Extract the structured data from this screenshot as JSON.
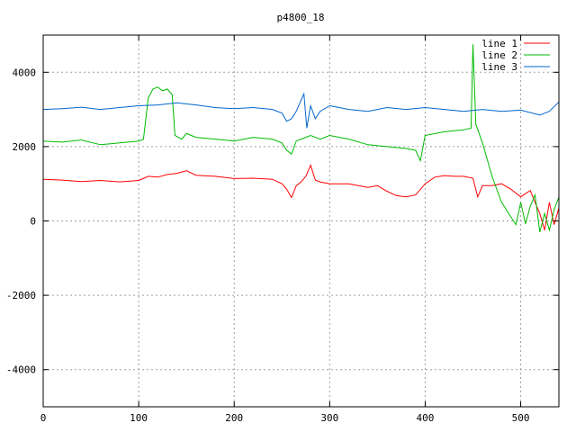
{
  "chart_data": {
    "type": "line",
    "title": "p4800_18",
    "xlabel": "",
    "ylabel": "",
    "xlim": [
      0,
      540
    ],
    "ylim": [
      -5000,
      5000
    ],
    "xticks": [
      0,
      100,
      200,
      300,
      400,
      500
    ],
    "yticks": [
      -4000,
      -2000,
      0,
      2000,
      4000
    ],
    "grid": true,
    "legend_position": "top-right",
    "series": [
      {
        "name": "line 1",
        "color": "#ff0000",
        "points": [
          [
            0,
            1120
          ],
          [
            20,
            1100
          ],
          [
            40,
            1060
          ],
          [
            60,
            1090
          ],
          [
            80,
            1050
          ],
          [
            100,
            1090
          ],
          [
            110,
            1200
          ],
          [
            120,
            1180
          ],
          [
            130,
            1250
          ],
          [
            140,
            1280
          ],
          [
            150,
            1350
          ],
          [
            160,
            1230
          ],
          [
            180,
            1200
          ],
          [
            200,
            1140
          ],
          [
            220,
            1150
          ],
          [
            240,
            1120
          ],
          [
            250,
            1000
          ],
          [
            255,
            850
          ],
          [
            260,
            630
          ],
          [
            265,
            950
          ],
          [
            270,
            1050
          ],
          [
            275,
            1200
          ],
          [
            280,
            1500
          ],
          [
            285,
            1100
          ],
          [
            290,
            1050
          ],
          [
            300,
            1000
          ],
          [
            320,
            1000
          ],
          [
            340,
            900
          ],
          [
            350,
            950
          ],
          [
            360,
            800
          ],
          [
            370,
            680
          ],
          [
            380,
            650
          ],
          [
            390,
            700
          ],
          [
            400,
            1000
          ],
          [
            410,
            1180
          ],
          [
            420,
            1220
          ],
          [
            430,
            1200
          ],
          [
            440,
            1200
          ],
          [
            450,
            1150
          ],
          [
            455,
            650
          ],
          [
            460,
            950
          ],
          [
            470,
            950
          ],
          [
            480,
            1000
          ],
          [
            490,
            850
          ],
          [
            500,
            650
          ],
          [
            510,
            820
          ],
          [
            515,
            500
          ],
          [
            520,
            200
          ],
          [
            525,
            -250
          ],
          [
            530,
            500
          ],
          [
            535,
            -100
          ],
          [
            540,
            350
          ]
        ]
      },
      {
        "name": "line 2",
        "color": "#00bb00",
        "points": [
          [
            0,
            2150
          ],
          [
            20,
            2120
          ],
          [
            40,
            2180
          ],
          [
            60,
            2050
          ],
          [
            80,
            2100
          ],
          [
            100,
            2150
          ],
          [
            105,
            2200
          ],
          [
            110,
            3300
          ],
          [
            115,
            3550
          ],
          [
            120,
            3600
          ],
          [
            125,
            3500
          ],
          [
            130,
            3550
          ],
          [
            135,
            3400
          ],
          [
            138,
            2300
          ],
          [
            145,
            2200
          ],
          [
            150,
            2350
          ],
          [
            160,
            2250
          ],
          [
            180,
            2200
          ],
          [
            200,
            2150
          ],
          [
            220,
            2250
          ],
          [
            240,
            2200
          ],
          [
            250,
            2100
          ],
          [
            255,
            1900
          ],
          [
            260,
            1800
          ],
          [
            265,
            2150
          ],
          [
            270,
            2200
          ],
          [
            275,
            2250
          ],
          [
            280,
            2300
          ],
          [
            290,
            2200
          ],
          [
            300,
            2300
          ],
          [
            320,
            2200
          ],
          [
            340,
            2050
          ],
          [
            360,
            2000
          ],
          [
            380,
            1950
          ],
          [
            390,
            1900
          ],
          [
            395,
            1620
          ],
          [
            400,
            2300
          ],
          [
            420,
            2400
          ],
          [
            440,
            2450
          ],
          [
            448,
            2500
          ],
          [
            450,
            4750
          ],
          [
            453,
            2600
          ],
          [
            460,
            2100
          ],
          [
            470,
            1200
          ],
          [
            480,
            500
          ],
          [
            490,
            100
          ],
          [
            495,
            -100
          ],
          [
            500,
            500
          ],
          [
            505,
            -80
          ],
          [
            510,
            400
          ],
          [
            515,
            700
          ],
          [
            520,
            -300
          ],
          [
            525,
            200
          ],
          [
            530,
            -250
          ],
          [
            535,
            300
          ],
          [
            540,
            650
          ]
        ]
      },
      {
        "name": "line 3",
        "color": "#0066cc",
        "points": [
          [
            0,
            3000
          ],
          [
            20,
            3020
          ],
          [
            40,
            3060
          ],
          [
            60,
            3000
          ],
          [
            80,
            3050
          ],
          [
            100,
            3100
          ],
          [
            120,
            3120
          ],
          [
            140,
            3180
          ],
          [
            160,
            3120
          ],
          [
            180,
            3050
          ],
          [
            200,
            3020
          ],
          [
            220,
            3050
          ],
          [
            240,
            3000
          ],
          [
            250,
            2900
          ],
          [
            255,
            2680
          ],
          [
            260,
            2750
          ],
          [
            265,
            2950
          ],
          [
            270,
            3250
          ],
          [
            273,
            3420
          ],
          [
            276,
            2500
          ],
          [
            280,
            3100
          ],
          [
            285,
            2750
          ],
          [
            290,
            2950
          ],
          [
            300,
            3100
          ],
          [
            310,
            3050
          ],
          [
            320,
            3000
          ],
          [
            340,
            2950
          ],
          [
            360,
            3050
          ],
          [
            380,
            3000
          ],
          [
            400,
            3050
          ],
          [
            420,
            3000
          ],
          [
            440,
            2950
          ],
          [
            460,
            3000
          ],
          [
            480,
            2950
          ],
          [
            500,
            2980
          ],
          [
            520,
            2850
          ],
          [
            530,
            2950
          ],
          [
            540,
            3200
          ]
        ]
      }
    ]
  }
}
